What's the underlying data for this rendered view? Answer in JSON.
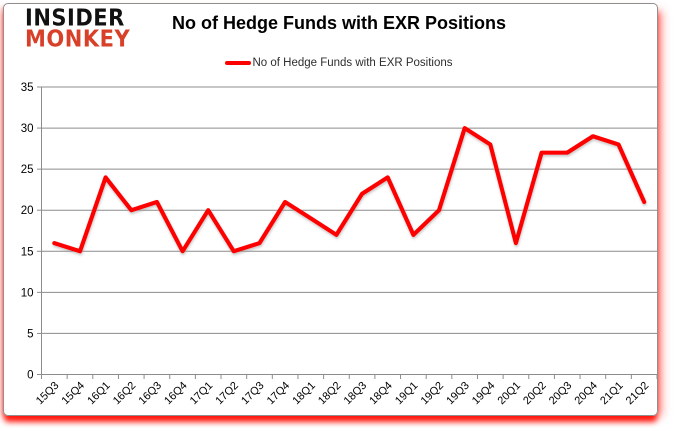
{
  "logo": {
    "line1": "INSIDER",
    "line2": "MONKEY",
    "line2_color": "#d8402a"
  },
  "header": {
    "title": "No of Hedge Funds with EXR Positions"
  },
  "legend": {
    "label": "No of Hedge Funds with EXR Positions",
    "line_color": "#fe0000"
  },
  "chart_data": {
    "type": "line",
    "title": "No of Hedge Funds with EXR Positions",
    "categories": [
      "15Q3",
      "15Q4",
      "16Q1",
      "16Q2",
      "16Q3",
      "16Q4",
      "17Q1",
      "17Q2",
      "17Q3",
      "17Q4",
      "18Q1",
      "18Q2",
      "18Q3",
      "18Q4",
      "19Q1",
      "19Q2",
      "19Q3",
      "19Q4",
      "20Q1",
      "20Q2",
      "20Q3",
      "20Q4",
      "21Q1",
      "21Q2"
    ],
    "series": [
      {
        "name": "No of Hedge Funds with EXR Positions",
        "color": "#fe0000",
        "values": [
          16,
          15,
          24,
          20,
          21,
          15,
          20,
          15,
          16,
          21,
          19,
          17,
          22,
          24,
          17,
          20,
          30,
          28,
          16,
          27,
          27,
          29,
          28,
          21
        ]
      }
    ],
    "xlabel": "",
    "ylabel": "",
    "ylim": [
      0,
      35
    ],
    "yticks": [
      0,
      5,
      10,
      15,
      20,
      25,
      30,
      35
    ],
    "grid": true,
    "legend_position": "top",
    "grid_color": "#8c8c8c",
    "tick_label_color": "#000000"
  }
}
